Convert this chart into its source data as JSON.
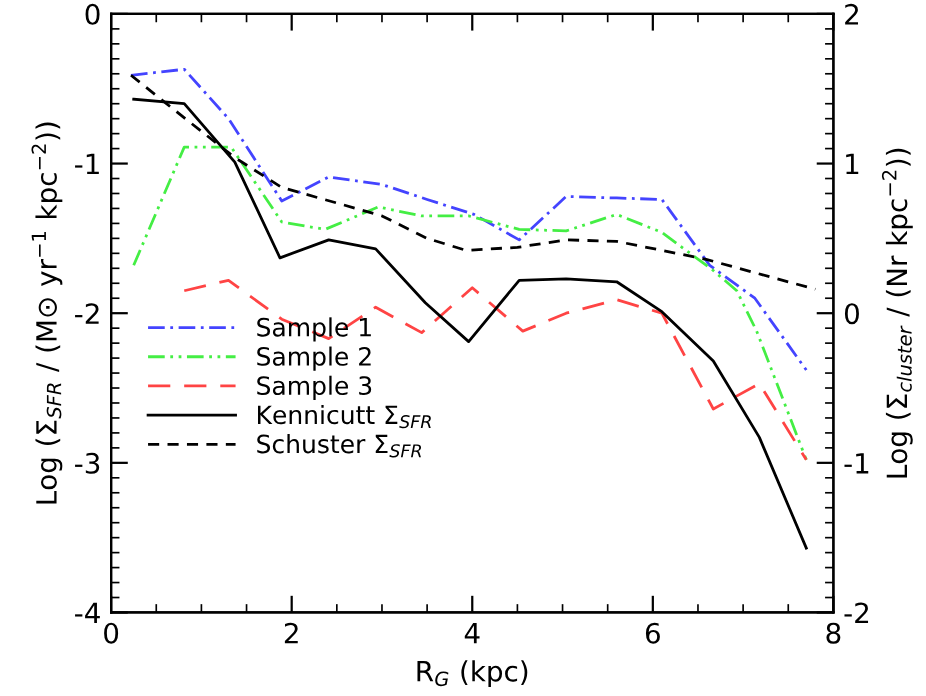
{
  "chart_data": {
    "type": "line",
    "xlabel": "R$_{G}$ (kpc)",
    "ylabel": "Log (Σ$_{SFR}$ / (M⊙ yr$^{−1}$ kpc$^{−2}$))",
    "y2label": "Log (Σ$_{cluster}$ / (Nr kpc$^{−2}$))",
    "xlim": [
      0,
      8
    ],
    "xticks": [
      0,
      2,
      4,
      6,
      8
    ],
    "ylim": [
      -4,
      0
    ],
    "yticks": [
      -4,
      -3,
      -2,
      -1,
      0
    ],
    "y2lim": [
      -2,
      2
    ],
    "y2ticks": [
      -2,
      -1,
      0,
      1,
      2
    ],
    "grid": false,
    "legend": "bottom left",
    "marker": "none",
    "series": [
      {
        "name": "Sample 1",
        "color": "#4444ff",
        "line_style": "dashdot",
        "x": [
          0.22,
          0.81,
          1.3,
          1.89,
          2.41,
          3.0,
          3.5,
          4.02,
          4.52,
          5.04,
          5.6,
          6.1,
          6.63,
          7.13,
          7.7
        ],
        "values": [
          -0.41,
          -0.37,
          -0.7,
          -1.25,
          -1.09,
          -1.14,
          -1.24,
          -1.34,
          -1.51,
          -1.22,
          -1.23,
          -1.24,
          -1.68,
          -1.9,
          -2.38
        ]
      },
      {
        "name": "Sample 2",
        "color": "#44ee44",
        "line_style": "dashdotdot",
        "x": [
          0.25,
          0.81,
          1.33,
          1.89,
          2.37,
          2.96,
          3.44,
          3.96,
          4.52,
          5.04,
          5.6,
          6.1,
          6.66,
          6.93,
          7.15,
          7.7
        ],
        "values": [
          -1.68,
          -0.89,
          -0.89,
          -1.39,
          -1.44,
          -1.29,
          -1.35,
          -1.35,
          -1.44,
          -1.45,
          -1.34,
          -1.46,
          -1.71,
          -1.85,
          -2.12,
          -2.98
        ]
      },
      {
        "name": "Sample 3",
        "color": "#ff4444",
        "line_style": "longdash",
        "x": [
          0.81,
          1.3,
          1.89,
          2.41,
          2.93,
          3.44,
          4.0,
          4.56,
          5.04,
          5.6,
          6.1,
          6.67,
          7.18,
          7.7
        ],
        "values": [
          -1.85,
          -1.78,
          -2.04,
          -2.17,
          -1.96,
          -2.13,
          -1.83,
          -2.12,
          -2.0,
          -1.91,
          -2.0,
          -2.64,
          -2.47,
          -2.98
        ]
      },
      {
        "name": "Kennicutt Σ$_{SFR}$",
        "color": "#000000",
        "line_style": "solid",
        "x": [
          0.25,
          0.81,
          1.37,
          1.87,
          2.41,
          2.93,
          3.48,
          3.96,
          4.52,
          5.04,
          5.6,
          6.1,
          6.67,
          7.18,
          7.7
        ],
        "values": [
          -0.57,
          -0.6,
          -0.99,
          -1.63,
          -1.51,
          -1.57,
          -1.93,
          -2.19,
          -1.78,
          -1.77,
          -1.79,
          -1.99,
          -2.32,
          -2.83,
          -3.57
        ]
      },
      {
        "name": "Schuster Σ$_{SFR}$",
        "color": "#000000",
        "line_style": "dashed",
        "x": [
          0.22,
          0.78,
          1.37,
          1.89,
          2.48,
          3.0,
          3.5,
          3.93,
          4.5,
          5.04,
          5.6,
          6.1,
          6.59,
          7.8
        ],
        "values": [
          -0.41,
          -0.68,
          -0.96,
          -1.16,
          -1.26,
          -1.35,
          -1.5,
          -1.58,
          -1.56,
          -1.51,
          -1.52,
          -1.58,
          -1.64,
          -1.84
        ]
      }
    ]
  }
}
